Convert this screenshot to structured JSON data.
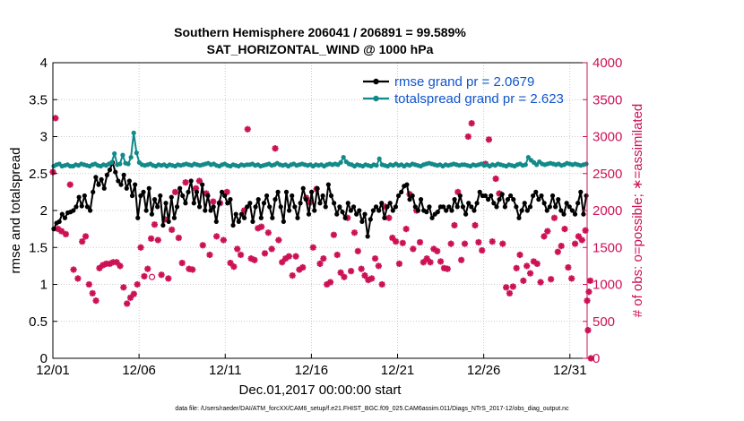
{
  "chart_data": {
    "type": "line",
    "title_line1": "Southern Hemisphere 206041 / 206891 = 99.589%",
    "title_line2": "SAT_HORIZONTAL_WIND @ 1000 hPa",
    "xlabel": "Dec.01,2017 00:00:00 start",
    "ylabel_left": "rmse and totalspread",
    "ylabel_right": "# of obs: o=possible; ∗=assimilated",
    "footnote": "data file: /Users/raeder/DAI/ATM_forcXX/CAM6_setup/f.e21.FHIST_BGC.f09_025.CAM6assim.011/Diags_NTrS_2017-12/obs_diag_output.nc",
    "xlim": [
      0,
      31
    ],
    "ylim_left": [
      0,
      4
    ],
    "ylim_right": [
      0,
      4000
    ],
    "x_ticks": [
      0,
      5,
      10,
      15,
      20,
      25,
      30
    ],
    "x_tick_labels": [
      "12/01",
      "12/06",
      "12/11",
      "12/16",
      "12/21",
      "12/26",
      "12/31"
    ],
    "y_left_ticks": [
      0,
      0.5,
      1,
      1.5,
      2,
      2.5,
      3,
      3.5,
      4
    ],
    "y_left_tick_labels": [
      "0",
      "0.5",
      "1",
      "1.5",
      "2",
      "2.5",
      "3",
      "3.5",
      "4"
    ],
    "y_right_ticks": [
      0,
      500,
      1000,
      1500,
      2000,
      2500,
      3000,
      3500,
      4000
    ],
    "y_right_tick_labels": [
      "0",
      "500",
      "1000",
      "1500",
      "2000",
      "2500",
      "3000",
      "3500",
      "4000"
    ],
    "grid": true,
    "legend_position": "top-right",
    "colors": {
      "rmse": "#000000",
      "spread": "#138a8a",
      "obs": "#cc1155"
    },
    "series": [
      {
        "name": "rmse grand pr = 2.0679",
        "key": "rmse",
        "values": [
          1.75,
          1.83,
          1.85,
          1.95,
          1.9,
          1.97,
          1.98,
          2.0,
          2.05,
          2.18,
          2.06,
          2.2,
          2.05,
          2.0,
          2.25,
          2.45,
          2.35,
          2.42,
          2.3,
          2.48,
          2.55,
          2.65,
          2.52,
          2.4,
          2.35,
          2.48,
          2.3,
          2.4,
          2.2,
          2.35,
          1.9,
          2.2,
          2.25,
          2.0,
          2.3,
          1.95,
          2.15,
          2.05,
          2.2,
          1.8,
          2.1,
          1.85,
          2.18,
          1.9,
          2.05,
          2.3,
          2.2,
          2.1,
          2.25,
          2.4,
          2.1,
          2.25,
          2.05,
          2.35,
          2.0,
          2.2,
          2.0,
          2.05,
          1.85,
          2.1,
          2.25,
          2.2,
          2.1,
          2.15,
          1.8,
          1.95,
          1.85,
          1.95,
          1.9,
          2.05,
          2.1,
          1.85,
          2.05,
          2.15,
          1.9,
          2.1,
          2.2,
          2.05,
          1.9,
          2.15,
          2.25,
          2.05,
          1.85,
          2.25,
          2.0,
          2.2,
          2.05,
          1.9,
          2.1,
          2.3,
          2.15,
          1.95,
          2.25,
          2.0,
          2.3,
          2.1,
          2.2,
          2.05,
          2.35,
          2.2,
          2.1,
          1.95,
          2.05,
          1.98,
          1.9,
          2.1,
          2.0,
          2.05,
          1.95,
          2.0,
          1.85,
          1.95,
          1.65,
          1.88,
          2.0,
          2.05,
          2.0,
          2.1,
          1.9,
          2.05,
          2.1,
          2.0,
          2.05,
          2.2,
          2.25,
          2.33,
          2.35,
          2.15,
          2.2,
          2.05,
          2.0,
          2.15,
          2.0,
          1.98,
          2.05,
          1.9,
          1.95,
          1.98,
          2.05,
          2.05,
          2.0,
          2.05,
          2.0,
          2.15,
          2.05,
          2.2,
          2.05,
          1.95,
          2.1,
          2.05,
          2.0,
          2.1,
          2.25,
          2.2,
          2.2,
          2.15,
          2.2,
          2.1,
          2.05,
          2.15,
          2.22,
          2.05,
          2.15,
          2.2,
          2.15,
          2.05,
          1.9,
          2.0,
          2.1,
          2.0,
          2.05,
          2.2,
          2.25,
          2.15,
          2.2,
          2.1,
          2.0,
          2.05,
          2.2,
          2.05,
          2.15,
          2.0,
          1.95,
          2.1,
          2.05,
          2.0,
          1.95,
          2.1,
          2.25,
          1.95,
          2.2
        ]
      },
      {
        "name": "totalspread grand pr = 2.623",
        "key": "spread",
        "values": [
          2.6,
          2.62,
          2.63,
          2.6,
          2.61,
          2.62,
          2.6,
          2.6,
          2.62,
          2.61,
          2.63,
          2.62,
          2.61,
          2.6,
          2.62,
          2.63,
          2.61,
          2.6,
          2.62,
          2.61,
          2.63,
          2.65,
          2.77,
          2.62,
          2.63,
          2.75,
          2.64,
          2.63,
          2.72,
          3.05,
          2.78,
          2.65,
          2.62,
          2.61,
          2.62,
          2.63,
          2.61,
          2.6,
          2.62,
          2.61,
          2.62,
          2.6,
          2.62,
          2.61,
          2.6,
          2.62,
          2.61,
          2.62,
          2.63,
          2.62,
          2.61,
          2.63,
          2.62,
          2.61,
          2.62,
          2.63,
          2.64,
          2.62,
          2.63,
          2.61,
          2.6,
          2.62,
          2.63,
          2.61,
          2.6,
          2.62,
          2.61,
          2.6,
          2.62,
          2.61,
          2.62,
          2.62,
          2.63,
          2.61,
          2.62,
          2.6,
          2.61,
          2.62,
          2.63,
          2.61,
          2.62,
          2.64,
          2.62,
          2.61,
          2.62,
          2.6,
          2.62,
          2.63,
          2.61,
          2.62,
          2.63,
          2.62,
          2.61,
          2.62,
          2.6,
          2.62,
          2.61,
          2.62,
          2.6,
          2.62,
          2.63,
          2.62,
          2.63,
          2.62,
          2.65,
          2.72,
          2.66,
          2.63,
          2.62,
          2.6,
          2.62,
          2.61,
          2.6,
          2.62,
          2.61,
          2.6,
          2.62,
          2.61,
          2.7,
          2.62,
          2.61,
          2.6,
          2.62,
          2.61,
          2.63,
          2.61,
          2.62,
          2.6,
          2.62,
          2.61,
          2.63,
          2.62,
          2.61,
          2.6,
          2.62,
          2.63,
          2.64,
          2.63,
          2.62,
          2.61,
          2.62,
          2.6,
          2.62,
          2.61,
          2.62,
          2.63,
          2.62,
          2.61,
          2.62,
          2.62,
          2.61,
          2.6,
          2.62,
          2.61,
          2.62,
          2.63,
          2.61,
          2.62,
          2.6,
          2.62,
          2.61,
          2.63,
          2.62,
          2.61,
          2.6,
          2.62,
          2.61,
          2.6,
          2.62,
          2.63,
          2.61,
          2.62,
          2.72,
          2.68,
          2.65,
          2.62,
          2.66,
          2.63,
          2.62,
          2.63,
          2.64,
          2.63,
          2.62,
          2.63,
          2.61,
          2.62,
          2.64,
          2.63,
          2.62,
          2.63,
          2.62,
          2.61,
          2.62,
          2.63
        ]
      }
    ],
    "obs_assimilated": [
      {
        "x": 0.0,
        "y": 2520
      },
      {
        "x": 0.15,
        "y": 3250
      },
      {
        "x": 0.3,
        "y": 1750
      },
      {
        "x": 0.5,
        "y": 1720
      },
      {
        "x": 0.75,
        "y": 1680
      },
      {
        "x": 1.0,
        "y": 2350
      },
      {
        "x": 1.2,
        "y": 1200
      },
      {
        "x": 1.45,
        "y": 1080
      },
      {
        "x": 1.7,
        "y": 1580
      },
      {
        "x": 1.9,
        "y": 1650
      },
      {
        "x": 2.1,
        "y": 1000
      },
      {
        "x": 2.3,
        "y": 880
      },
      {
        "x": 2.5,
        "y": 780
      },
      {
        "x": 2.7,
        "y": 1220
      },
      {
        "x": 2.9,
        "y": 1260
      },
      {
        "x": 3.1,
        "y": 1280
      },
      {
        "x": 3.3,
        "y": 1280
      },
      {
        "x": 3.5,
        "y": 1300
      },
      {
        "x": 3.7,
        "y": 1300
      },
      {
        "x": 3.9,
        "y": 1250
      },
      {
        "x": 4.1,
        "y": 960
      },
      {
        "x": 4.3,
        "y": 740
      },
      {
        "x": 4.5,
        "y": 820
      },
      {
        "x": 4.7,
        "y": 870
      },
      {
        "x": 4.9,
        "y": 1000
      },
      {
        "x": 5.1,
        "y": 1500
      },
      {
        "x": 5.3,
        "y": 1110
      },
      {
        "x": 5.5,
        "y": 1210
      },
      {
        "x": 5.7,
        "y": 1620
      },
      {
        "x": 5.9,
        "y": 1810
      },
      {
        "x": 6.1,
        "y": 1600
      },
      {
        "x": 6.3,
        "y": 1130
      },
      {
        "x": 6.5,
        "y": 1880
      },
      {
        "x": 6.7,
        "y": 1080
      },
      {
        "x": 6.9,
        "y": 1740
      },
      {
        "x": 7.1,
        "y": 2250
      },
      {
        "x": 7.3,
        "y": 1630
      },
      {
        "x": 7.5,
        "y": 1290
      },
      {
        "x": 7.7,
        "y": 2380
      },
      {
        "x": 7.9,
        "y": 1210
      },
      {
        "x": 8.1,
        "y": 1200
      },
      {
        "x": 8.3,
        "y": 2300
      },
      {
        "x": 8.5,
        "y": 2400
      },
      {
        "x": 8.7,
        "y": 1530
      },
      {
        "x": 8.9,
        "y": 2230
      },
      {
        "x": 9.1,
        "y": 1400
      },
      {
        "x": 9.3,
        "y": 2120
      },
      {
        "x": 9.5,
        "y": 1650
      },
      {
        "x": 9.7,
        "y": 2100
      },
      {
        "x": 9.9,
        "y": 1600
      },
      {
        "x": 10.1,
        "y": 2250
      },
      {
        "x": 10.3,
        "y": 1290
      },
      {
        "x": 10.5,
        "y": 1240
      },
      {
        "x": 10.7,
        "y": 1480
      },
      {
        "x": 10.9,
        "y": 1400
      },
      {
        "x": 11.1,
        "y": 2000
      },
      {
        "x": 11.3,
        "y": 3100
      },
      {
        "x": 11.5,
        "y": 1350
      },
      {
        "x": 11.7,
        "y": 1330
      },
      {
        "x": 11.9,
        "y": 1760
      },
      {
        "x": 12.1,
        "y": 1780
      },
      {
        "x": 12.3,
        "y": 1420
      },
      {
        "x": 12.5,
        "y": 1700
      },
      {
        "x": 12.7,
        "y": 1480
      },
      {
        "x": 12.9,
        "y": 2840
      },
      {
        "x": 13.1,
        "y": 1600
      },
      {
        "x": 13.3,
        "y": 1300
      },
      {
        "x": 13.5,
        "y": 1350
      },
      {
        "x": 13.7,
        "y": 1380
      },
      {
        "x": 13.9,
        "y": 1120
      },
      {
        "x": 14.1,
        "y": 1380
      },
      {
        "x": 14.3,
        "y": 1200
      },
      {
        "x": 14.5,
        "y": 1230
      },
      {
        "x": 14.7,
        "y": 2170
      },
      {
        "x": 14.9,
        "y": 2110
      },
      {
        "x": 15.1,
        "y": 1500
      },
      {
        "x": 15.3,
        "y": 2290
      },
      {
        "x": 15.5,
        "y": 1280
      },
      {
        "x": 15.7,
        "y": 1350
      },
      {
        "x": 15.9,
        "y": 1000
      },
      {
        "x": 16.1,
        "y": 1030
      },
      {
        "x": 16.3,
        "y": 1670
      },
      {
        "x": 16.5,
        "y": 1400
      },
      {
        "x": 16.7,
        "y": 1160
      },
      {
        "x": 16.9,
        "y": 1100
      },
      {
        "x": 17.1,
        "y": 1900
      },
      {
        "x": 17.3,
        "y": 1180
      },
      {
        "x": 17.5,
        "y": 1700
      },
      {
        "x": 17.7,
        "y": 1450
      },
      {
        "x": 17.9,
        "y": 1210
      },
      {
        "x": 18.1,
        "y": 1120
      },
      {
        "x": 18.3,
        "y": 1060
      },
      {
        "x": 18.5,
        "y": 1080
      },
      {
        "x": 18.7,
        "y": 1350
      },
      {
        "x": 18.9,
        "y": 1250
      },
      {
        "x": 19.1,
        "y": 1000
      },
      {
        "x": 19.3,
        "y": 2050
      },
      {
        "x": 19.5,
        "y": 1900
      },
      {
        "x": 19.7,
        "y": 1630
      },
      {
        "x": 19.9,
        "y": 1580
      },
      {
        "x": 20.1,
        "y": 1280
      },
      {
        "x": 20.3,
        "y": 1560
      },
      {
        "x": 20.5,
        "y": 1750
      },
      {
        "x": 20.7,
        "y": 2220
      },
      {
        "x": 20.9,
        "y": 1480
      },
      {
        "x": 21.1,
        "y": 2000
      },
      {
        "x": 21.3,
        "y": 1570
      },
      {
        "x": 21.5,
        "y": 1300
      },
      {
        "x": 21.7,
        "y": 1350
      },
      {
        "x": 21.9,
        "y": 1300
      },
      {
        "x": 22.1,
        "y": 1480
      },
      {
        "x": 22.3,
        "y": 1450
      },
      {
        "x": 22.5,
        "y": 1310
      },
      {
        "x": 22.7,
        "y": 1220
      },
      {
        "x": 22.9,
        "y": 1210
      },
      {
        "x": 23.1,
        "y": 1550
      },
      {
        "x": 23.3,
        "y": 1800
      },
      {
        "x": 23.5,
        "y": 2250
      },
      {
        "x": 23.7,
        "y": 1330
      },
      {
        "x": 23.9,
        "y": 1550
      },
      {
        "x": 24.1,
        "y": 3000
      },
      {
        "x": 24.3,
        "y": 3180
      },
      {
        "x": 24.5,
        "y": 1800
      },
      {
        "x": 24.7,
        "y": 1570
      },
      {
        "x": 24.9,
        "y": 1460
      },
      {
        "x": 25.1,
        "y": 2630
      },
      {
        "x": 25.3,
        "y": 2960
      },
      {
        "x": 25.5,
        "y": 1580
      },
      {
        "x": 25.7,
        "y": 2430
      },
      {
        "x": 25.9,
        "y": 2230
      },
      {
        "x": 26.1,
        "y": 1550
      },
      {
        "x": 26.3,
        "y": 960
      },
      {
        "x": 26.5,
        "y": 880
      },
      {
        "x": 26.7,
        "y": 970
      },
      {
        "x": 26.9,
        "y": 1220
      },
      {
        "x": 27.1,
        "y": 1400
      },
      {
        "x": 27.3,
        "y": 1050
      },
      {
        "x": 27.5,
        "y": 1250
      },
      {
        "x": 27.7,
        "y": 1150
      },
      {
        "x": 27.9,
        "y": 1310
      },
      {
        "x": 28.1,
        "y": 1280
      },
      {
        "x": 28.3,
        "y": 1030
      },
      {
        "x": 28.5,
        "y": 1650
      },
      {
        "x": 28.7,
        "y": 1720
      },
      {
        "x": 28.9,
        "y": 1070
      },
      {
        "x": 29.1,
        "y": 1900
      },
      {
        "x": 29.3,
        "y": 1440
      },
      {
        "x": 29.5,
        "y": 1520
      },
      {
        "x": 29.7,
        "y": 1750
      },
      {
        "x": 29.9,
        "y": 1230
      },
      {
        "x": 30.1,
        "y": 1080
      },
      {
        "x": 30.3,
        "y": 1550
      },
      {
        "x": 30.5,
        "y": 1650
      },
      {
        "x": 30.7,
        "y": 1600
      },
      {
        "x": 30.9,
        "y": 1730
      },
      {
        "x": 31.0,
        "y": 780
      },
      {
        "x": 31.05,
        "y": 380
      },
      {
        "x": 31.1,
        "y": 900
      },
      {
        "x": 31.18,
        "y": 1050
      },
      {
        "x": 31.22,
        "y": 0
      }
    ],
    "obs_possible_visible": [
      {
        "x": 5.75,
        "y": 1100
      }
    ]
  }
}
